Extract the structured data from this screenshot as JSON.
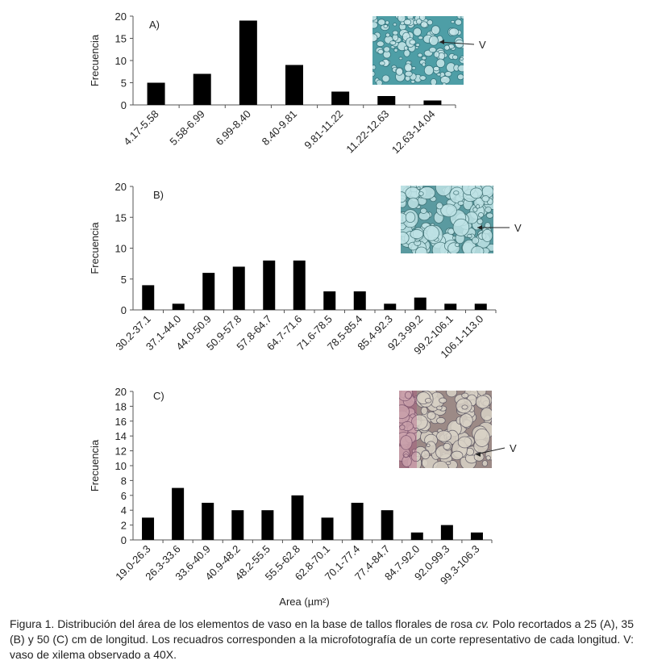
{
  "chart_data": [
    {
      "type": "bar",
      "panel_label": "A)",
      "ylabel": "Frecuencia",
      "annotation": "V",
      "color": "#000000",
      "categories": [
        "4.17-5.58",
        "5.58-6.99",
        "6.99-8.40",
        "8.40-9.81",
        "9.81-11.22",
        "11.22-12.63",
        "12.63-14.04"
      ],
      "values": [
        5,
        7,
        19,
        9,
        3,
        2,
        1
      ],
      "ylim": [
        0,
        20
      ],
      "yticks": [
        0,
        5,
        10,
        15,
        20
      ]
    },
    {
      "type": "bar",
      "panel_label": "B)",
      "ylabel": "Frecuencia",
      "annotation": "V",
      "color": "#000000",
      "categories": [
        "30.2-37.1",
        "37.1-44.0",
        "44.0-50.9",
        "50.9-57.8",
        "57.8-64.7",
        "64.7-71.6",
        "71.6-78.5",
        "78.5-85.4",
        "85.4-92.3",
        "92.3-99.2",
        "99.2-106.1",
        "106.1-113.0"
      ],
      "values": [
        4,
        1,
        6,
        7,
        8,
        8,
        3,
        3,
        1,
        2,
        1,
        1
      ],
      "ylim": [
        0,
        20
      ],
      "yticks": [
        0,
        5,
        10,
        15,
        20
      ]
    },
    {
      "type": "bar",
      "panel_label": "C)",
      "ylabel": "Frecuencia",
      "annotation": "V",
      "color": "#000000",
      "xlabel": "Area (µm²)",
      "categories": [
        "19.0-26.3",
        "26.3-33.6",
        "33.6-40.9",
        "40.9-48.2",
        "48.2-55.5",
        "55.5-62.8",
        "62.8-70.1",
        "70.1-77.4",
        "77.4-84.7",
        "84.7-92.0",
        "92.0-99.3",
        "99.3-106.3"
      ],
      "values": [
        3,
        7,
        5,
        4,
        4,
        6,
        3,
        5,
        4,
        1,
        2,
        1
      ],
      "ylim": [
        0,
        20
      ],
      "yticks": [
        0,
        2,
        4,
        6,
        8,
        10,
        12,
        14,
        16,
        18,
        20
      ]
    }
  ],
  "caption": [
    "Figura 1. Distribución del área de los elementos de vaso en la base de tallos florales de rosa ",
    "cv.",
    " Polo recortados a 25 (A), 35 (B) y 50 (C) cm de longitud. Los recuadros corresponden a la microfotografía de un corte representativo de cada longitud. V: vaso de xilema observado a 40X."
  ]
}
